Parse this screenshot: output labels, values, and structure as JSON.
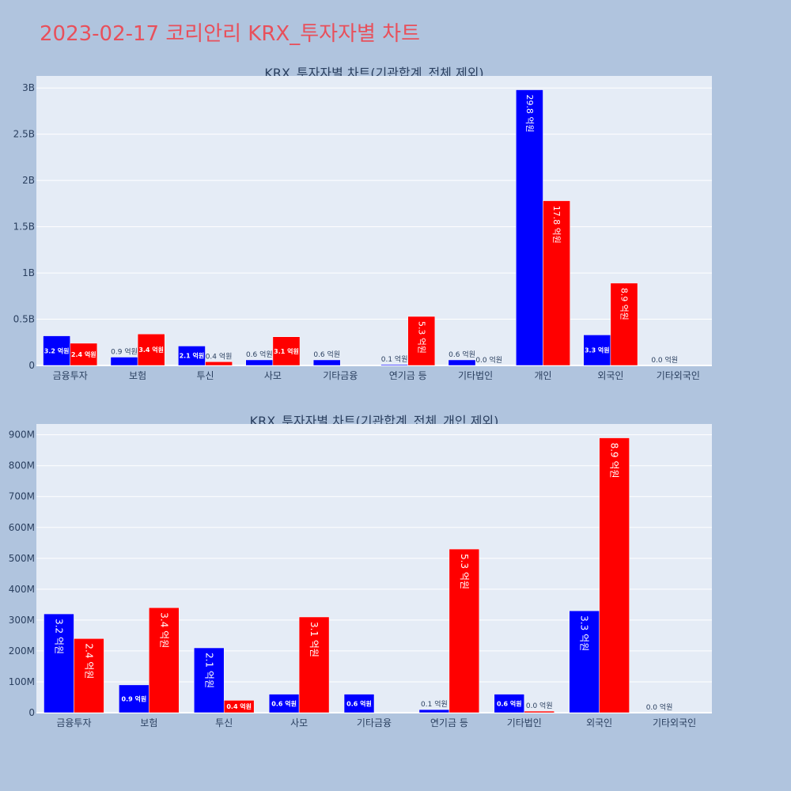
{
  "page": {
    "title": "2023-02-17 코리안리 KRX_투자자별 차트"
  },
  "colors": {
    "buy": "#0000ff",
    "sell": "#ff0000",
    "plot_bg": "#e5ecf6",
    "page_bg": "#b0c4de",
    "title": "#e8505b",
    "axis_text": "#2a3f5f"
  },
  "chart_data": [
    {
      "type": "bar",
      "title": "KRX_투자자별 차트(기관합계_전체 제외)",
      "categories": [
        "금융투자",
        "보험",
        "투신",
        "사모",
        "기타금융",
        "연기금 등",
        "기타법인",
        "개인",
        "외국인",
        "기타외국인"
      ],
      "series": [
        {
          "color": "#0000ff",
          "values": [
            320000000,
            90000000,
            210000000,
            60000000,
            60000000,
            10000000,
            60000000,
            2980000000,
            330000000,
            0
          ],
          "labels": [
            "3.2 억원",
            "0.9 억원",
            "2.1 억원",
            "0.6 억원",
            "0.6 억원",
            "0.1 억원",
            "0.6 억원",
            "29.8 억원",
            "3.3 억원",
            "0.0 억원"
          ]
        },
        {
          "color": "#ff0000",
          "values": [
            240000000,
            340000000,
            40000000,
            310000000,
            null,
            530000000,
            0,
            1780000000,
            890000000,
            null
          ],
          "labels": [
            "2.4 억원",
            "3.4 억원",
            "0.4 억원",
            "3.1 억원",
            "",
            "5.3 억원",
            "0.0 억원",
            "17.8 억원",
            "8.9 억원",
            ""
          ]
        }
      ],
      "yticks": [
        0,
        500000000,
        1000000000,
        1500000000,
        2000000000,
        2500000000,
        3000000000
      ],
      "ytick_labels": [
        "0",
        "0.5B",
        "1B",
        "1.5B",
        "2B",
        "2.5B",
        "3B"
      ],
      "ylim": [
        0,
        3130000000
      ],
      "grid": true,
      "legend": "none"
    },
    {
      "type": "bar",
      "title": "KRX_투자자별 차트(기관합계_전체_개인 제외)",
      "categories": [
        "금융투자",
        "보험",
        "투신",
        "사모",
        "기타금융",
        "연기금 등",
        "기타법인",
        "외국인",
        "기타외국인"
      ],
      "series": [
        {
          "color": "#0000ff",
          "values": [
            320000000,
            90000000,
            210000000,
            60000000,
            60000000,
            10000000,
            60000000,
            330000000,
            0
          ],
          "labels": [
            "3.2 억원",
            "0.9 억원",
            "2.1 억원",
            "0.6 억원",
            "0.6 억원",
            "0.1 억원",
            "0.6 억원",
            "3.3 억원",
            "0.0 억원"
          ]
        },
        {
          "color": "#ff0000",
          "values": [
            240000000,
            340000000,
            40000000,
            310000000,
            null,
            530000000,
            5000000,
            890000000,
            null
          ],
          "labels": [
            "2.4 억원",
            "3.4 억원",
            "0.4 억원",
            "3.1 억원",
            "",
            "5.3 억원",
            "0.0 억원",
            "8.9 억원",
            ""
          ]
        }
      ],
      "yticks": [
        0,
        100000000,
        200000000,
        300000000,
        400000000,
        500000000,
        600000000,
        700000000,
        800000000,
        900000000
      ],
      "ytick_labels": [
        "0",
        "100M",
        "200M",
        "300M",
        "400M",
        "500M",
        "600M",
        "700M",
        "800M",
        "900M"
      ],
      "ylim": [
        0,
        935000000
      ],
      "grid": true,
      "legend": "none"
    }
  ]
}
